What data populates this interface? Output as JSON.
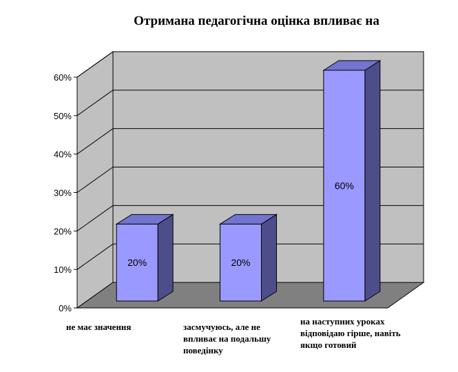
{
  "chart_data": {
    "type": "bar",
    "title": "Отримана педагогічна оцінка впливає на",
    "categories": [
      "не має значення",
      "засмучуюсь, але не впливає на подальшу поведінку",
      "на наступних уроках відповідаю гірше, навіть якщо готовий"
    ],
    "values": [
      20,
      20,
      60
    ],
    "value_labels": [
      "20%",
      "20%",
      "60%"
    ],
    "y_ticks": [
      "0%",
      "10%",
      "20%",
      "30%",
      "40%",
      "50%",
      "60%"
    ],
    "ylim": [
      0,
      60
    ],
    "xlabel": "",
    "ylabel": "",
    "grid": true,
    "style": "3d-column",
    "colors": {
      "bar_front": "#9999ff",
      "bar_side": "#4d4d8a",
      "bar_top": "#7373d0",
      "wall": "#c0c0c0",
      "floor": "#808080"
    }
  }
}
